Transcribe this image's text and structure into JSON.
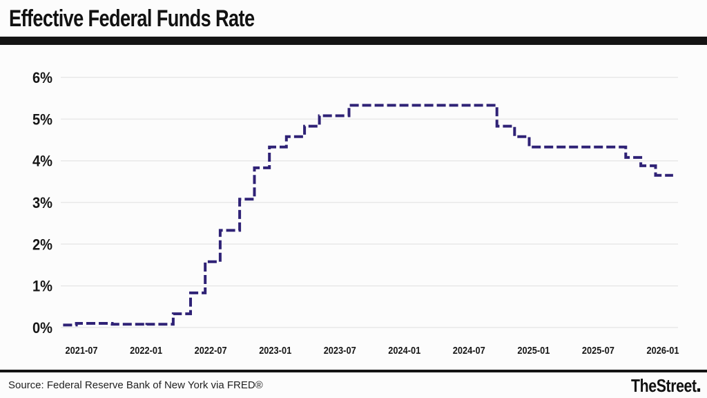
{
  "header": {
    "title": "Effective Federal Funds Rate"
  },
  "footer": {
    "source": "Source: Federal Reserve Bank of New York via FRED®",
    "brand": "TheStreet"
  },
  "chart_data": {
    "type": "line",
    "subtype": "step-after",
    "line_style": "dashed",
    "title": "Effective Federal Funds Rate",
    "xlabel": "",
    "ylabel": "",
    "unit": "percent",
    "grid": true,
    "legend": "none",
    "ylim": [
      0,
      6
    ],
    "xlim": [
      "2021-05-10",
      "2026-01-30"
    ],
    "line_color": "#2f2276",
    "grid_color": "#e8e8e8",
    "yticks": [
      {
        "value": 6,
        "label": "6%"
      },
      {
        "value": 5,
        "label": "5%"
      },
      {
        "value": 4,
        "label": "4%"
      },
      {
        "value": 3,
        "label": "3%"
      },
      {
        "value": 2,
        "label": "2%"
      },
      {
        "value": 1,
        "label": "1%"
      },
      {
        "value": 0,
        "label": "0%"
      }
    ],
    "xticks": [
      "2021-07",
      "2022-01",
      "2022-07",
      "2023-01",
      "2023-07",
      "2024-01",
      "2024-07",
      "2025-01",
      "2025-07",
      "2026-01"
    ],
    "series": [
      {
        "name": "Effective Federal Funds Rate",
        "points": [
          {
            "date": "2021-05-10",
            "rate": 0.06
          },
          {
            "date": "2021-06-17",
            "rate": 0.1
          },
          {
            "date": "2021-09-27",
            "rate": 0.08
          },
          {
            "date": "2021-12-31",
            "rate": 0.06
          },
          {
            "date": "2022-01-03",
            "rate": 0.08
          },
          {
            "date": "2022-03-17",
            "rate": 0.33
          },
          {
            "date": "2022-05-05",
            "rate": 0.83
          },
          {
            "date": "2022-06-16",
            "rate": 1.58
          },
          {
            "date": "2022-07-28",
            "rate": 2.33
          },
          {
            "date": "2022-09-22",
            "rate": 3.08
          },
          {
            "date": "2022-11-03",
            "rate": 3.83
          },
          {
            "date": "2022-12-15",
            "rate": 4.33
          },
          {
            "date": "2023-02-02",
            "rate": 4.58
          },
          {
            "date": "2023-03-23",
            "rate": 4.83
          },
          {
            "date": "2023-05-04",
            "rate": 5.08
          },
          {
            "date": "2023-07-27",
            "rate": 5.33
          },
          {
            "date": "2024-09-19",
            "rate": 4.83
          },
          {
            "date": "2024-11-08",
            "rate": 4.58
          },
          {
            "date": "2024-12-19",
            "rate": 4.33
          },
          {
            "date": "2025-09-18",
            "rate": 4.08
          },
          {
            "date": "2025-10-30",
            "rate": 3.88
          },
          {
            "date": "2025-12-11",
            "rate": 3.65
          },
          {
            "date": "2026-01-30",
            "rate": 3.65
          }
        ]
      }
    ]
  }
}
